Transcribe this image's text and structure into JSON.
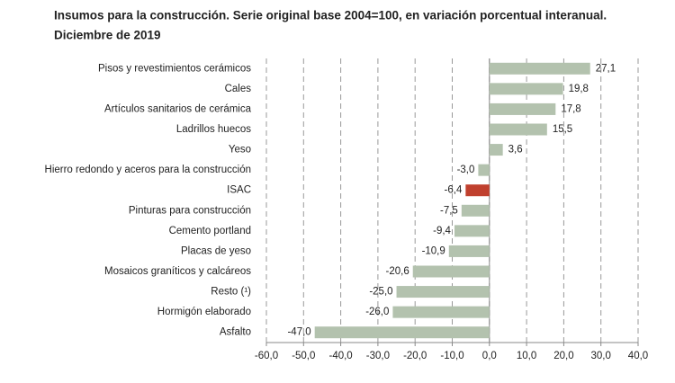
{
  "chart_data": {
    "type": "bar",
    "orientation": "horizontal",
    "title": "Insumos para la construcción. Serie original base 2004=100, en variación porcentual interanual.",
    "subtitle": "Diciembre de 2019",
    "categories": [
      "Pisos y revestimientos cerámicos",
      "Cales",
      "Artículos sanitarios de cerámica",
      "Ladrillos huecos",
      "Yeso",
      "Hierro redondo y aceros para la construcción",
      "ISAC",
      "Pinturas para construcción",
      "Cemento portland",
      "Placas de yeso",
      "Mosaicos graníticos y calcáreos",
      "Resto (¹)",
      "Hormigón elaborado",
      "Asfalto"
    ],
    "values": [
      27.1,
      19.8,
      17.8,
      15.5,
      3.6,
      -3.0,
      -6.4,
      -7.5,
      -9.4,
      -10.9,
      -20.6,
      -25.0,
      -26.0,
      -47.0
    ],
    "value_labels": [
      "27,1",
      "19,8",
      "17,8",
      "15,5",
      "3,6",
      "-3,0",
      "-6,4",
      "-7,5",
      "-9,4",
      "-10,9",
      "-20,6",
      "-25,0",
      "-26,0",
      "-47,0"
    ],
    "colors": [
      "#b3c2ae",
      "#b3c2ae",
      "#b3c2ae",
      "#b3c2ae",
      "#b3c2ae",
      "#b3c2ae",
      "#c0402e",
      "#b3c2ae",
      "#b3c2ae",
      "#b3c2ae",
      "#b3c2ae",
      "#b3c2ae",
      "#b3c2ae",
      "#b3c2ae"
    ],
    "xlim": [
      -60,
      40
    ],
    "xticks": [
      {
        "value": -60,
        "label": "-60,0"
      },
      {
        "value": -50,
        "label": "-50,0"
      },
      {
        "value": -40,
        "label": "-40,0"
      },
      {
        "value": -30,
        "label": "-30,0"
      },
      {
        "value": -20,
        "label": "-20,0"
      },
      {
        "value": -10,
        "label": "-10,0"
      },
      {
        "value": 0,
        "label": "0,0"
      },
      {
        "value": 10,
        "label": "10,0"
      },
      {
        "value": 20,
        "label": "20,0"
      },
      {
        "value": 30,
        "label": "30,0"
      },
      {
        "value": 40,
        "label": "40,0"
      }
    ],
    "grid": true
  }
}
